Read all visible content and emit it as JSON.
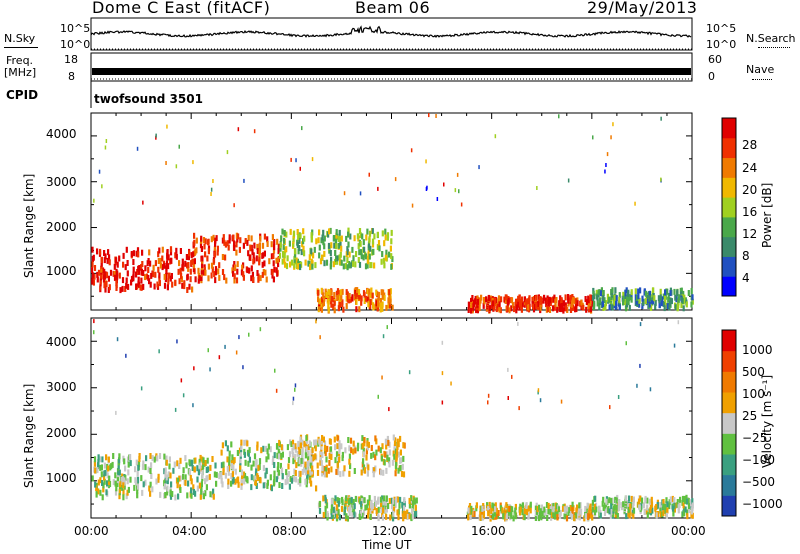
{
  "header": {
    "station": "Dome C East (fitACF)",
    "beam": "Beam 06",
    "date": "29/May/2013"
  },
  "top_panels": {
    "nsky_label": "N.Sky",
    "nsearch_label": "N.Search",
    "nsky_ticks": [
      "10^5",
      "10^0"
    ],
    "nsearch_ticks": [
      "10^5",
      "10^0"
    ],
    "freq_label_line1": "Freq.",
    "freq_label_line2": "[MHz]",
    "freq_ticks": [
      "18",
      "8"
    ],
    "nave_label": "Nave",
    "nave_ticks": [
      "60",
      "0"
    ],
    "cpid_label": "CPID",
    "cpid_value": "twofsound 3501"
  },
  "power_panel": {
    "ylabel": "Slant Range [km]",
    "yticks": [
      "4000",
      "3000",
      "2000",
      "1000"
    ],
    "colorbar_label": "Power [dB]",
    "colorbar_ticks": [
      "28",
      "24",
      "20",
      "16",
      "12",
      "8",
      "4"
    ]
  },
  "velocity_panel": {
    "ylabel": "Slant Range [km]",
    "yticks": [
      "4000",
      "3000",
      "2000",
      "1000"
    ],
    "colorbar_label": "Velocity [m s⁻¹]",
    "colorbar_ticks": [
      "1000",
      "500",
      "100",
      "25",
      "−25",
      "−100",
      "−500",
      "−1000"
    ]
  },
  "xaxis": {
    "label": "Time UT",
    "ticks": [
      "00:00",
      "04:00",
      "08:00",
      "12:00",
      "16:00",
      "20:00",
      "00:00"
    ]
  },
  "colors": {
    "power_scale": [
      "#0000ff",
      "#2050c0",
      "#3a8a6a",
      "#4aa84a",
      "#a0d020",
      "#f0b800",
      "#f07a00",
      "#f03000",
      "#e00000"
    ],
    "velocity_scale": [
      "#2040b0",
      "#2a7a9a",
      "#3aa080",
      "#60c040",
      "#c8c8c8",
      "#f0a000",
      "#f07a00",
      "#f04000",
      "#e00000"
    ]
  },
  "chart_data": [
    {
      "type": "heatmap",
      "title": "Power",
      "ylabel": "Slant Range [km]",
      "xlabel": "Time UT",
      "xlim": [
        0,
        24
      ],
      "ylim": [
        200,
        4500
      ],
      "colorbar": {
        "label": "Power [dB]",
        "range": [
          0,
          30
        ]
      },
      "features": [
        {
          "t0": 0.0,
          "t1": 4.0,
          "r0": 700,
          "r1": 1600,
          "value": 28
        },
        {
          "t0": 4.0,
          "t1": 7.5,
          "r0": 900,
          "r1": 1900,
          "value": 26
        },
        {
          "t0": 7.5,
          "t1": 12.0,
          "r0": 1200,
          "r1": 2000,
          "value": 14
        },
        {
          "t0": 9.0,
          "t1": 12.0,
          "r0": 250,
          "r1": 700,
          "value": 22
        },
        {
          "t0": 15.0,
          "t1": 20.0,
          "r0": 250,
          "r1": 550,
          "value": 26
        },
        {
          "t0": 20.0,
          "t1": 24.0,
          "r0": 300,
          "r1": 700,
          "value": 10
        }
      ]
    },
    {
      "type": "heatmap",
      "title": "Velocity",
      "ylabel": "Slant Range [km]",
      "xlabel": "Time UT",
      "xlim": [
        0,
        24
      ],
      "ylim": [
        200,
        4500
      ],
      "colorbar": {
        "label": "Velocity [m s⁻¹]",
        "range": [
          -1000,
          1000
        ]
      },
      "features": [
        {
          "t0": 0.0,
          "t1": 5.0,
          "r0": 700,
          "r1": 1600,
          "value": -100
        },
        {
          "t0": 5.0,
          "t1": 9.0,
          "r0": 900,
          "r1": 1900,
          "value": -100
        },
        {
          "t0": 8.0,
          "t1": 12.5,
          "r0": 1200,
          "r1": 2000,
          "value": 100
        },
        {
          "t0": 9.0,
          "t1": 13.0,
          "r0": 250,
          "r1": 700,
          "value": -100
        },
        {
          "t0": 15.0,
          "t1": 20.0,
          "r0": 250,
          "r1": 550,
          "value": 25
        },
        {
          "t0": 20.0,
          "t1": 24.0,
          "r0": 300,
          "r1": 700,
          "value": -100
        }
      ]
    }
  ]
}
